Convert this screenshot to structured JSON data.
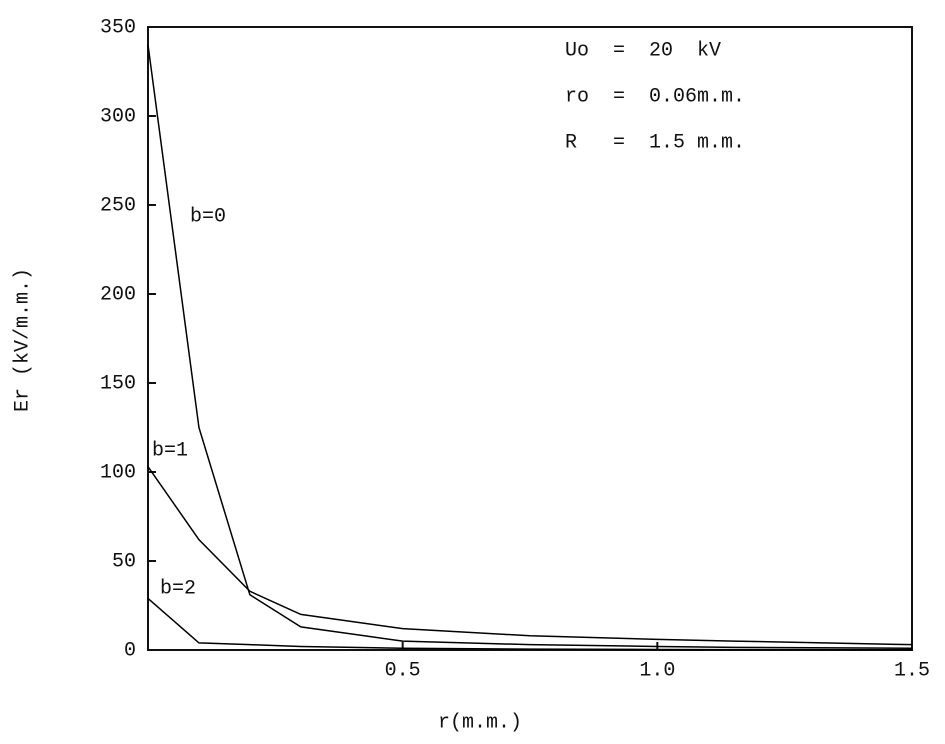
{
  "chart_data": {
    "type": "line",
    "x": [
      0,
      0.1,
      0.2,
      0.3,
      0.5,
      0.75,
      1.0,
      1.15,
      1.5
    ],
    "series": [
      {
        "name": "b=0",
        "color": "#000000",
        "values": [
          340,
          125,
          31,
          13,
          5,
          3,
          2,
          1.5,
          1
        ]
      },
      {
        "name": "b=1",
        "color": "#000000",
        "values": [
          103,
          62,
          33,
          20,
          12,
          8,
          6,
          5,
          3
        ]
      },
      {
        "name": "b=2",
        "color": "#000000",
        "values": [
          29,
          4,
          3,
          2,
          1,
          0.5,
          0.3,
          0.2,
          0.1
        ]
      }
    ],
    "xlabel": "r(m.m.)",
    "ylabel": "Er (kV/m.m.)",
    "xlim": [
      0,
      1.5
    ],
    "ylim": [
      0,
      350
    ],
    "xticks": [
      0.5,
      {
        "value": 1.0,
        "label": "1.0"
      },
      1.5
    ],
    "yticks": [
      0,
      50,
      100,
      150,
      200,
      250,
      300,
      350
    ],
    "annotations": [
      "Uo  =  20  kV",
      "ro  =  0.06m.m.",
      "R   =  1.5 m.m."
    ],
    "grid": false
  }
}
